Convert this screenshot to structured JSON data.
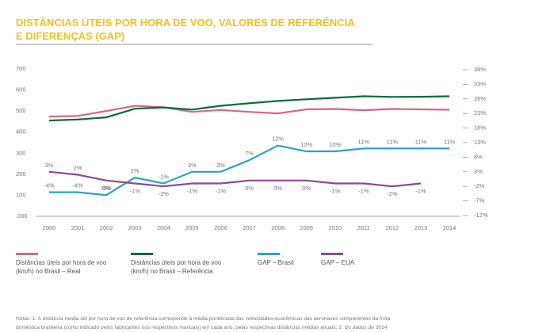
{
  "chart_data": {
    "type": "line",
    "title": "DISTÂNCIAS ÚTEIS POR HORA DE VOO, VALORES DE REFERÊNCIA",
    "subtitle": "E DIFERENÇAS (GAP)",
    "categories": [
      "2000",
      "2001",
      "2002",
      "2003",
      "2004",
      "2005",
      "2006",
      "2007",
      "2008",
      "2009",
      "2010",
      "2011",
      "2012",
      "2013",
      "2014"
    ],
    "ylim": [
      0,
      700
    ],
    "yticks": [
      {
        "value": 0,
        "label": ".000"
      },
      100,
      200,
      300,
      400,
      500,
      600,
      700
    ],
    "y2lim": [
      -12,
      38
    ],
    "y2ticks": [
      {
        "value": -12,
        "label": "-12%"
      },
      {
        "value": -7,
        "label": "-7%"
      },
      {
        "value": -2,
        "label": "-2%"
      },
      {
        "value": 3,
        "label": "3%"
      },
      {
        "value": 8,
        "label": "8%"
      },
      {
        "value": 13,
        "label": "13%"
      },
      {
        "value": 18,
        "label": "18%"
      },
      {
        "value": 23,
        "label": "23%"
      },
      {
        "value": 28,
        "label": "28%"
      },
      {
        "value": 33,
        "label": "33%"
      },
      {
        "value": 38,
        "label": "38%"
      }
    ],
    "series": [
      {
        "name": "Distâncias úteis por hora de voo (km/h) no Brasil – Real",
        "color": "#d9687f",
        "values": [
          474,
          477,
          500,
          525,
          518,
          496,
          505,
          496,
          489,
          508,
          510,
          504,
          510,
          508,
          506
        ]
      },
      {
        "name": "Distâncias úteis por hora de voo (km/h) no Brasil – Referência",
        "color": "#0a6b3a",
        "values": [
          455,
          460,
          470,
          511,
          517,
          507,
          525,
          537,
          548,
          556,
          563,
          570,
          567,
          568,
          570
        ]
      },
      {
        "name": "GAP – Brasil",
        "color": "#2aa3c8",
        "axis": "y2",
        "values": [
          -4,
          -4,
          -5,
          1,
          -1,
          3,
          3,
          7,
          12,
          10,
          10,
          11,
          11,
          11,
          11
        ],
        "value_labels": [
          "-4%",
          "-4%",
          "-5%",
          "1%",
          "-1%",
          "3%",
          "3%",
          "7%",
          "12%",
          "10%",
          "10%",
          "11%",
          "11%",
          "11%",
          "11%"
        ]
      },
      {
        "name": "GAP – EUA",
        "color": "#8a4a8f",
        "axis": "y2",
        "values": [
          3,
          2,
          0,
          -1,
          -2,
          -1,
          -1,
          0,
          0,
          0,
          -1,
          -1,
          -2,
          -1,
          null
        ],
        "value_labels": [
          "3%",
          "2%",
          "0%",
          "-1%",
          "-2%",
          "-1%",
          "-1%",
          "0%",
          "0%",
          "0%",
          "-1%",
          "-1%",
          "-2%",
          "-1%",
          null
        ]
      }
    ],
    "notes": [
      "Notas: 1. A distância média útil por hora de voo de referência corresponde à média ponderada das velocidades econômicas das aeronaves componentes da frota",
      "doméstica brasileira (como indicado pelos fabricantes nos respectivos manuais) em cada ano, pelas respectivas distâncias médias anuais; 2. Os dados de 2014"
    ]
  }
}
